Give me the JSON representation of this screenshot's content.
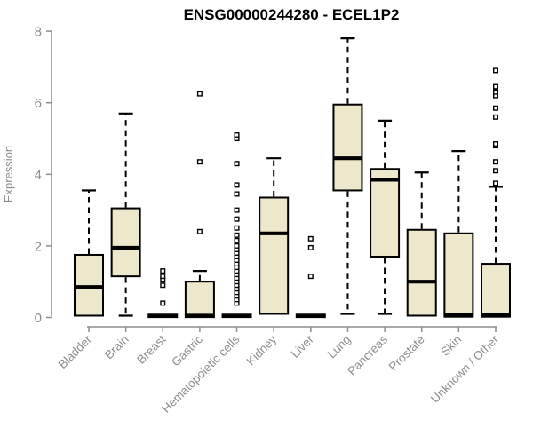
{
  "chart_data": {
    "type": "box",
    "title": "ENSG00000244280 - ECEL1P2",
    "ylabel": "Expression",
    "xlabel": "",
    "ylim": [
      0,
      8
    ],
    "yticks": [
      0,
      2,
      4,
      6,
      8
    ],
    "grid": false,
    "legend": "none",
    "colors": {
      "box_fill": "#ede7cb",
      "box_stroke": "#000000",
      "axis": "#8d8d8d",
      "tick_label": "#8d8d8d",
      "title": "#000000"
    },
    "categories": [
      "Bladder",
      "Brain",
      "Breast",
      "Gastric",
      "Hematopoietic cells",
      "Kidney",
      "Liver",
      "Lung",
      "Pancreas",
      "Prostate",
      "Skin",
      "Unknown / Other"
    ],
    "boxes": [
      {
        "label": "Bladder",
        "whislo": 0.05,
        "q1": 0.05,
        "med": 0.85,
        "q3": 1.75,
        "whishi": 3.55,
        "outliers": []
      },
      {
        "label": "Brain",
        "whislo": 0.05,
        "q1": 1.15,
        "med": 1.95,
        "q3": 3.05,
        "whishi": 5.7,
        "outliers": []
      },
      {
        "label": "Breast",
        "whislo": 0.0,
        "q1": 0.01,
        "med": 0.04,
        "q3": 0.08,
        "whishi": 0.12,
        "outliers": [
          0.4,
          0.9,
          1.05,
          1.15,
          1.3
        ]
      },
      {
        "label": "Gastric",
        "whislo": 0.0,
        "q1": 0.01,
        "med": 0.05,
        "q3": 1.0,
        "whishi": 1.3,
        "outliers": [
          2.4,
          4.35,
          6.25
        ]
      },
      {
        "label": "Hematopoietic cells",
        "whislo": 0.0,
        "q1": 0.01,
        "med": 0.04,
        "q3": 0.08,
        "whishi": 0.12,
        "outliers": [
          0.4,
          0.5,
          0.6,
          0.7,
          0.8,
          0.9,
          1.0,
          1.1,
          1.2,
          1.3,
          1.4,
          1.5,
          1.6,
          1.7,
          1.8,
          1.9,
          2.0,
          2.15,
          2.3,
          2.5,
          2.75,
          3.0,
          3.45,
          3.7,
          4.3,
          5.0,
          5.1
        ]
      },
      {
        "label": "Kidney",
        "whislo": 0.1,
        "q1": 0.1,
        "med": 2.35,
        "q3": 3.35,
        "whishi": 4.45,
        "outliers": []
      },
      {
        "label": "Liver",
        "whislo": 0.0,
        "q1": 0.01,
        "med": 0.04,
        "q3": 0.08,
        "whishi": 0.12,
        "outliers": [
          1.15,
          1.95,
          2.2
        ]
      },
      {
        "label": "Lung",
        "whislo": 0.1,
        "q1": 3.55,
        "med": 4.45,
        "q3": 5.95,
        "whishi": 7.8,
        "outliers": []
      },
      {
        "label": "Pancreas",
        "whislo": 0.1,
        "q1": 1.7,
        "med": 3.85,
        "q3": 4.15,
        "whishi": 5.5,
        "outliers": []
      },
      {
        "label": "Prostate",
        "whislo": 0.05,
        "q1": 0.05,
        "med": 1.0,
        "q3": 2.45,
        "whishi": 4.05,
        "outliers": []
      },
      {
        "label": "Skin",
        "whislo": 0.02,
        "q1": 0.02,
        "med": 0.06,
        "q3": 2.35,
        "whishi": 4.65,
        "outliers": []
      },
      {
        "label": "Unknown / Other",
        "whislo": 0.02,
        "q1": 0.02,
        "med": 0.06,
        "q3": 1.5,
        "whishi": 3.65,
        "outliers": [
          3.75,
          4.1,
          4.35,
          4.8,
          4.85,
          5.6,
          5.85,
          6.2,
          6.3,
          6.45,
          6.9
        ]
      }
    ]
  }
}
